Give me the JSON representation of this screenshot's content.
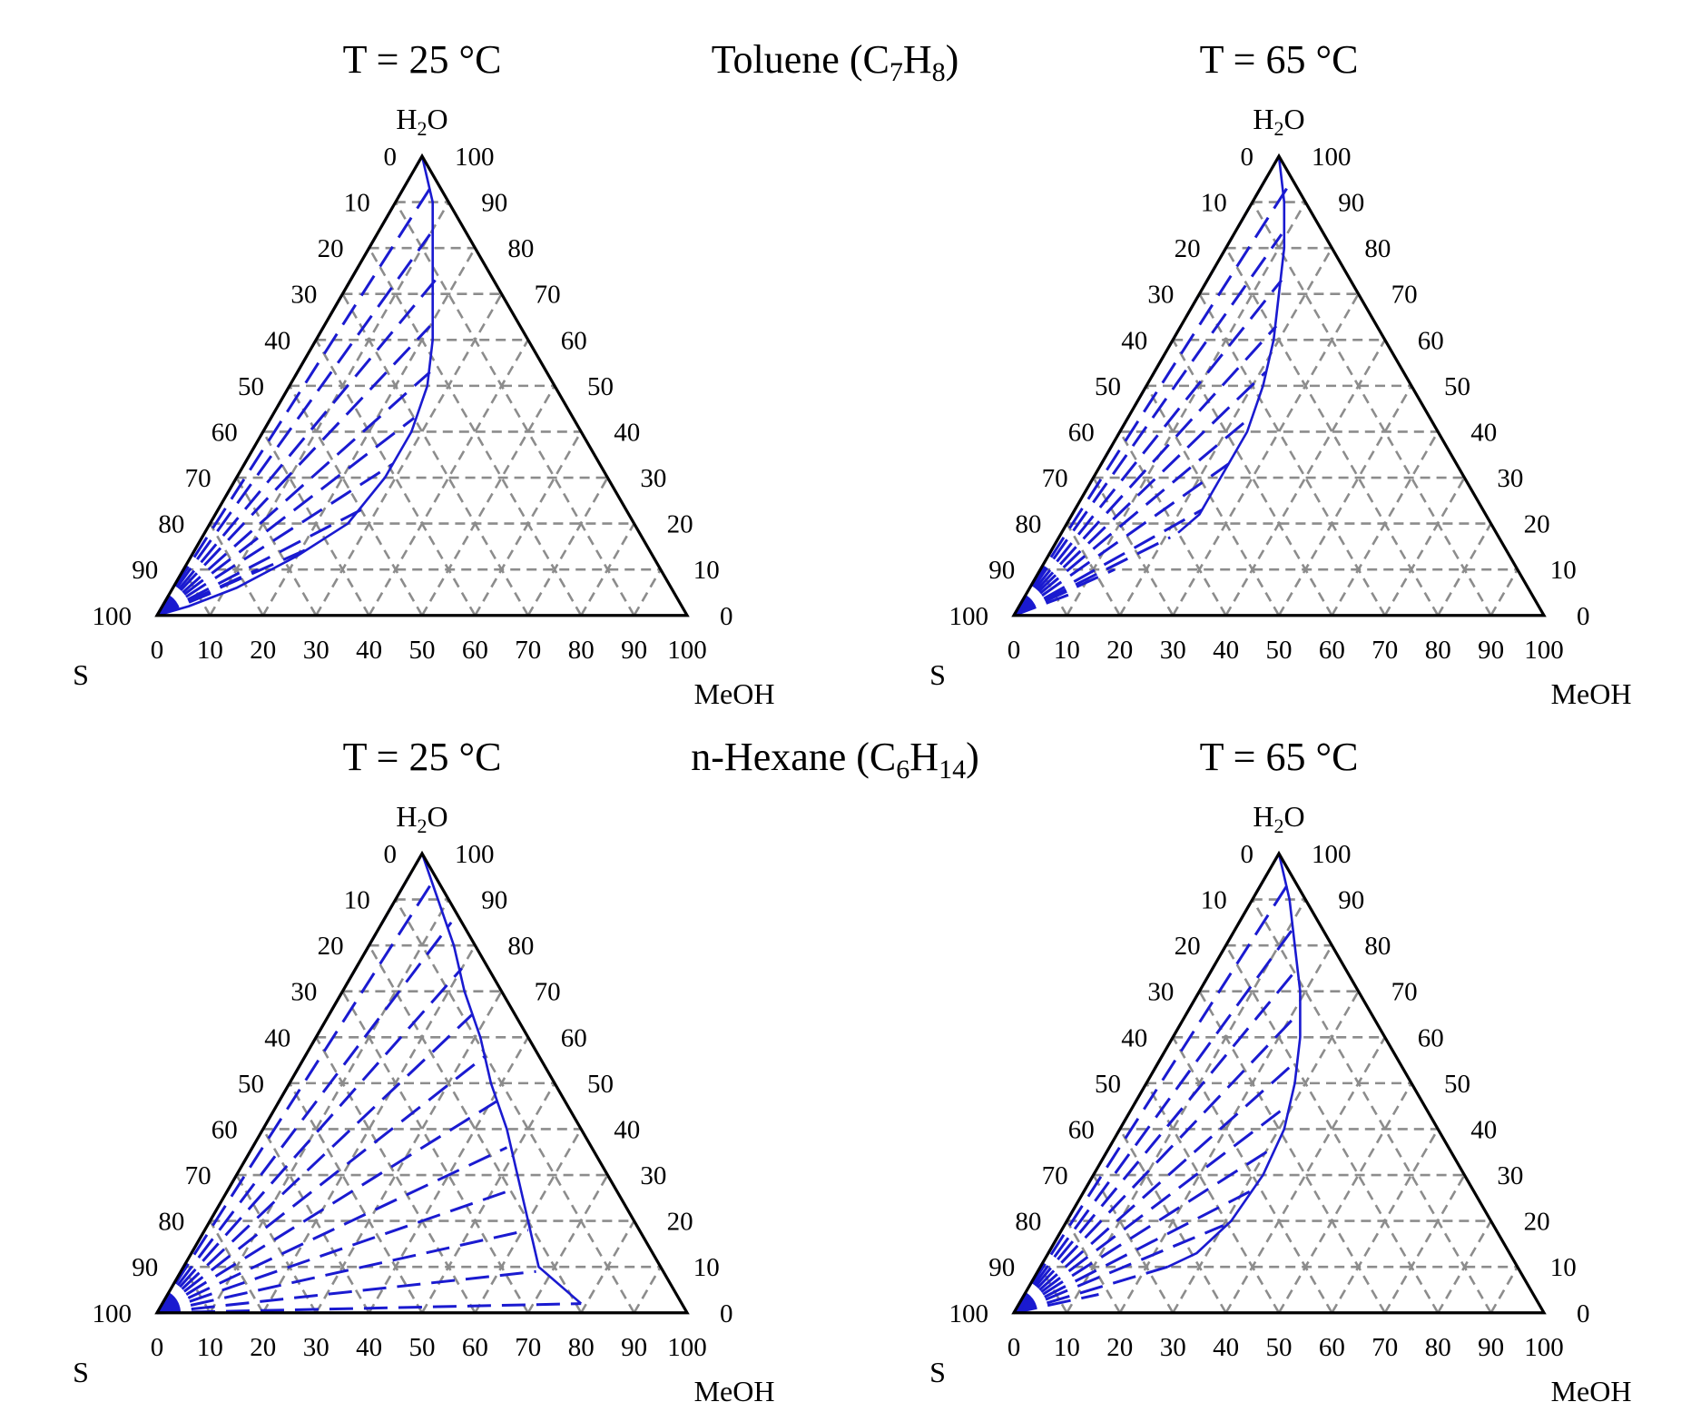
{
  "figure": {
    "section_titles": [
      "Toluene (C7H8)",
      "n-Hexane (C6H14)"
    ],
    "vertex_labels": {
      "top": "H2O",
      "left": "S",
      "right": "MeOH"
    },
    "ticks": [
      "0",
      "10",
      "20",
      "30",
      "40",
      "50",
      "60",
      "70",
      "80",
      "90",
      "100"
    ],
    "colors": {
      "frame": "#000000",
      "grid": "#8c8c8c",
      "curve": "#1a1ad0"
    }
  },
  "chart_data": [
    {
      "type": "ternary",
      "title": "T = 25 °C",
      "system": "Toluene (C7H8)",
      "components": [
        "H2O",
        "S",
        "MeOH"
      ],
      "left_axis": "H2O (0 at top, 100 at bottom-left)",
      "right_axis": "H2O (100 at top, 0 at bottom-right)",
      "bottom_axis": "MeOH (0 at S, 100 at MeOH)",
      "grid_step": 10,
      "binodal": [
        {
          "h2o": 100,
          "meoh": 0
        },
        {
          "h2o": 90,
          "meoh": 7
        },
        {
          "h2o": 80,
          "meoh": 12
        },
        {
          "h2o": 70,
          "meoh": 17
        },
        {
          "h2o": 60,
          "meoh": 22
        },
        {
          "h2o": 50,
          "meoh": 26
        },
        {
          "h2o": 40,
          "meoh": 28
        },
        {
          "h2o": 30,
          "meoh": 28
        },
        {
          "h2o": 20,
          "meoh": 26
        },
        {
          "h2o": 13,
          "meoh": 20
        },
        {
          "h2o": 6,
          "meoh": 12
        },
        {
          "h2o": 2,
          "meoh": 5
        },
        {
          "h2o": 0,
          "meoh": 0
        }
      ],
      "tie_lines": [
        {
          "h2o": 100,
          "meoh": 0
        },
        {
          "h2o": 93,
          "meoh": 5
        },
        {
          "h2o": 83,
          "meoh": 10
        },
        {
          "h2o": 73,
          "meoh": 16
        },
        {
          "h2o": 63,
          "meoh": 20
        },
        {
          "h2o": 53,
          "meoh": 25
        },
        {
          "h2o": 43,
          "meoh": 27
        },
        {
          "h2o": 33,
          "meoh": 28
        },
        {
          "h2o": 23,
          "meoh": 27
        },
        {
          "h2o": 15,
          "meoh": 22
        },
        {
          "h2o": 10,
          "meoh": 14
        },
        {
          "h2o": 5,
          "meoh": 8
        }
      ]
    },
    {
      "type": "ternary",
      "title": "T = 65 °C",
      "system": "Toluene (C7H8)",
      "components": [
        "H2O",
        "S",
        "MeOH"
      ],
      "grid_step": 10,
      "binodal": [
        {
          "h2o": 100,
          "meoh": 0
        },
        {
          "h2o": 90,
          "meoh": 6
        },
        {
          "h2o": 80,
          "meoh": 11
        },
        {
          "h2o": 70,
          "meoh": 15
        },
        {
          "h2o": 60,
          "meoh": 19
        },
        {
          "h2o": 50,
          "meoh": 22
        },
        {
          "h2o": 40,
          "meoh": 24
        },
        {
          "h2o": 30,
          "meoh": 24
        },
        {
          "h2o": 22,
          "meoh": 24
        },
        {
          "h2o": 18,
          "meoh": 22
        }
      ],
      "tie_lines": [
        {
          "h2o": 100,
          "meoh": 0
        },
        {
          "h2o": 93,
          "meoh": 5
        },
        {
          "h2o": 83,
          "meoh": 9
        },
        {
          "h2o": 73,
          "meoh": 14
        },
        {
          "h2o": 63,
          "meoh": 18
        },
        {
          "h2o": 53,
          "meoh": 21
        },
        {
          "h2o": 43,
          "meoh": 23
        },
        {
          "h2o": 33,
          "meoh": 24
        },
        {
          "h2o": 23,
          "meoh": 24
        },
        {
          "h2o": 17,
          "meoh": 21
        },
        {
          "h2o": 10,
          "meoh": 14
        },
        {
          "h2o": 5,
          "meoh": 9
        }
      ]
    },
    {
      "type": "ternary",
      "title": "T = 25 °C",
      "system": "n-Hexane (C6H14)",
      "components": [
        "H2O",
        "S",
        "MeOH"
      ],
      "grid_step": 10,
      "binodal": [
        {
          "h2o": 100,
          "meoh": 0
        },
        {
          "h2o": 90,
          "meoh": 8
        },
        {
          "h2o": 80,
          "meoh": 16
        },
        {
          "h2o": 70,
          "meoh": 23
        },
        {
          "h2o": 60,
          "meoh": 31
        },
        {
          "h2o": 50,
          "meoh": 38
        },
        {
          "h2o": 40,
          "meoh": 46
        },
        {
          "h2o": 30,
          "meoh": 53
        },
        {
          "h2o": 20,
          "meoh": 60
        },
        {
          "h2o": 10,
          "meoh": 67
        },
        {
          "h2o": 2,
          "meoh": 79
        }
      ],
      "tie_lines": [
        {
          "h2o": 100,
          "meoh": 0
        },
        {
          "h2o": 93,
          "meoh": 5
        },
        {
          "h2o": 85,
          "meoh": 13
        },
        {
          "h2o": 75,
          "meoh": 20
        },
        {
          "h2o": 65,
          "meoh": 27
        },
        {
          "h2o": 56,
          "meoh": 34
        },
        {
          "h2o": 46,
          "meoh": 41
        },
        {
          "h2o": 36,
          "meoh": 48
        },
        {
          "h2o": 27,
          "meoh": 54
        },
        {
          "h2o": 18,
          "meoh": 61
        },
        {
          "h2o": 9,
          "meoh": 67
        },
        {
          "h2o": 2,
          "meoh": 79
        }
      ]
    },
    {
      "type": "ternary",
      "title": "T = 65 °C",
      "system": "n-Hexane (C6H14)",
      "components": [
        "H2O",
        "S",
        "MeOH"
      ],
      "grid_step": 10,
      "binodal": [
        {
          "h2o": 100,
          "meoh": 0
        },
        {
          "h2o": 90,
          "meoh": 7
        },
        {
          "h2o": 80,
          "meoh": 13
        },
        {
          "h2o": 70,
          "meoh": 19
        },
        {
          "h2o": 60,
          "meoh": 24
        },
        {
          "h2o": 50,
          "meoh": 28
        },
        {
          "h2o": 40,
          "meoh": 31
        },
        {
          "h2o": 30,
          "meoh": 32
        },
        {
          "h2o": 20,
          "meoh": 31
        },
        {
          "h2o": 13,
          "meoh": 28
        },
        {
          "h2o": 10,
          "meoh": 24
        }
      ],
      "tie_lines": [
        {
          "h2o": 100,
          "meoh": 0
        },
        {
          "h2o": 93,
          "meoh": 5
        },
        {
          "h2o": 85,
          "meoh": 11
        },
        {
          "h2o": 75,
          "meoh": 16
        },
        {
          "h2o": 65,
          "meoh": 21
        },
        {
          "h2o": 55,
          "meoh": 26
        },
        {
          "h2o": 45,
          "meoh": 29
        },
        {
          "h2o": 36,
          "meoh": 31
        },
        {
          "h2o": 27,
          "meoh": 32
        },
        {
          "h2o": 19,
          "meoh": 30
        },
        {
          "h2o": 10,
          "meoh": 24
        },
        {
          "h2o": 4,
          "meoh": 14
        }
      ]
    }
  ]
}
